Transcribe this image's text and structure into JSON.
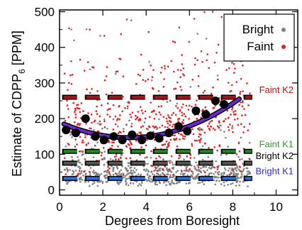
{
  "chart_data": {
    "type": "scatter",
    "xlabel": "Degrees from Boresight",
    "ylabel_main": "Estimate of CDPP",
    "ylabel_sub": "6",
    "ylabel_unit": "[PPM]",
    "xlim": [
      0,
      11
    ],
    "ylim": [
      -15,
      505
    ],
    "x_ticks": [
      0,
      2,
      4,
      6,
      8,
      10
    ],
    "y_ticks": [
      0,
      100,
      200,
      300,
      400,
      500
    ],
    "legend": {
      "placement": "top-right",
      "entries": [
        {
          "label": "Bright",
          "color": "#808080"
        },
        {
          "label": "Faint",
          "color": "#e02020"
        }
      ]
    },
    "reference_lines": [
      {
        "label": "Faint K2",
        "value": 260,
        "color": "#b01010",
        "label_color": "#c01010",
        "x_end": 8.9
      },
      {
        "label": "Faint K1",
        "value": 108,
        "color": "#1f8a1f",
        "label_color": "#2a9a2a",
        "x_end": 8.9
      },
      {
        "label": "Bright K2",
        "value": 75,
        "color": "#555555",
        "label_color": "#000000",
        "x_end": 8.9
      },
      {
        "label": "Bright K1",
        "value": 32,
        "color": "#2a6ee0",
        "label_color": "#2a2ad0",
        "x_end": 8.9
      }
    ],
    "binned_medians": {
      "name": "",
      "color": "#000000",
      "x": [
        0.3,
        0.75,
        1.2,
        1.65,
        2.05,
        2.5,
        2.9,
        3.35,
        3.8,
        4.2,
        4.6,
        5.05,
        5.5,
        5.9,
        6.3,
        6.75,
        7.2,
        7.6
      ],
      "y": [
        168,
        160,
        200,
        150,
        140,
        150,
        140,
        155,
        140,
        152,
        145,
        160,
        178,
        165,
        222,
        212,
        250,
        240
      ]
    },
    "fit_curve": {
      "color": "#6a2ad0",
      "x_range": [
        0.2,
        8.3
      ],
      "coefficients": [
        190,
        -27,
        4.2
      ]
    },
    "scatter_density": {
      "faint_color": "#e02020",
      "bright_color": "#808080",
      "faint_count": 650,
      "bright_count": 750
    }
  }
}
